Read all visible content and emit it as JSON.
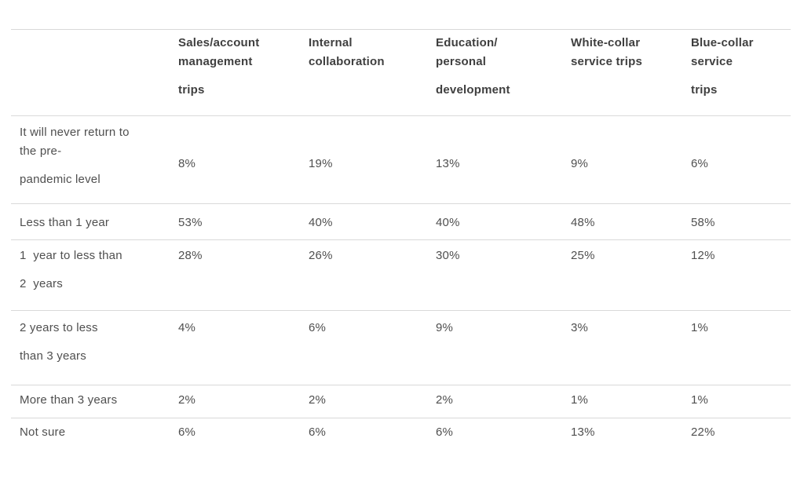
{
  "table": {
    "header": {
      "cols": [
        {
          "l1": "Sales/account",
          "l2": "management",
          "l3": "trips"
        },
        {
          "l1": "Internal",
          "l2": "collaboration",
          "l3": ""
        },
        {
          "l1": "Education/",
          "l2": "personal",
          "l3": "development"
        },
        {
          "l1": "White-collar",
          "l2": "service trips",
          "l3": ""
        },
        {
          "l1": "Blue-collar",
          "l2": "service",
          "l3": "trips"
        }
      ]
    },
    "rows": [
      {
        "l1": "It will never return to",
        "l2": "the pre-",
        "l3": "pandemic level",
        "values": [
          "8%",
          "19%",
          "13%",
          "9%",
          "6%"
        ]
      },
      {
        "l1": "Less than 1 year",
        "l2": "",
        "l3": "",
        "values": [
          "53%",
          "40%",
          "40%",
          "48%",
          "58%"
        ]
      },
      {
        "l1": "1  year to less than",
        "l2": "",
        "l3": "2  years",
        "values": [
          "28%",
          "26%",
          "30%",
          "25%",
          "12%"
        ]
      },
      {
        "l1": "2 years to less",
        "l2": "",
        "l3": "than 3 years",
        "values": [
          "4%",
          "6%",
          "9%",
          "3%",
          "1%"
        ]
      },
      {
        "l1": "More than 3 years",
        "l2": "",
        "l3": "",
        "values": [
          "2%",
          "2%",
          "2%",
          "1%",
          "1%"
        ]
      },
      {
        "l1": "Not sure",
        "l2": "",
        "l3": "",
        "values": [
          "6%",
          "6%",
          "6%",
          "13%",
          "22%"
        ]
      }
    ]
  },
  "colors": {
    "body_text": "#4f4f4f",
    "header_text": "#3f3f3f",
    "divider": "#d9d9d9",
    "background": "#ffffff"
  },
  "chart_data": {
    "type": "table",
    "title": "",
    "categories": [
      "It will never return to the pre-pandemic level",
      "Less than 1 year",
      "1 year to less than 2 years",
      "2 years to less than 3 years",
      "More than 3 years",
      "Not sure"
    ],
    "series": [
      {
        "name": "Sales/account management trips",
        "values": [
          "8%",
          "53%",
          "28%",
          "4%",
          "2%",
          "6%"
        ]
      },
      {
        "name": "Internal collaboration",
        "values": [
          "19%",
          "40%",
          "26%",
          "6%",
          "2%",
          "6%"
        ]
      },
      {
        "name": "Education/personal development",
        "values": [
          "13%",
          "40%",
          "30%",
          "9%",
          "2%",
          "6%"
        ]
      },
      {
        "name": "White-collar service trips",
        "values": [
          "9%",
          "48%",
          "25%",
          "3%",
          "1%",
          "13%"
        ]
      },
      {
        "name": "Blue-collar service trips",
        "values": [
          "6%",
          "58%",
          "12%",
          "1%",
          "1%",
          "22%"
        ]
      }
    ]
  }
}
